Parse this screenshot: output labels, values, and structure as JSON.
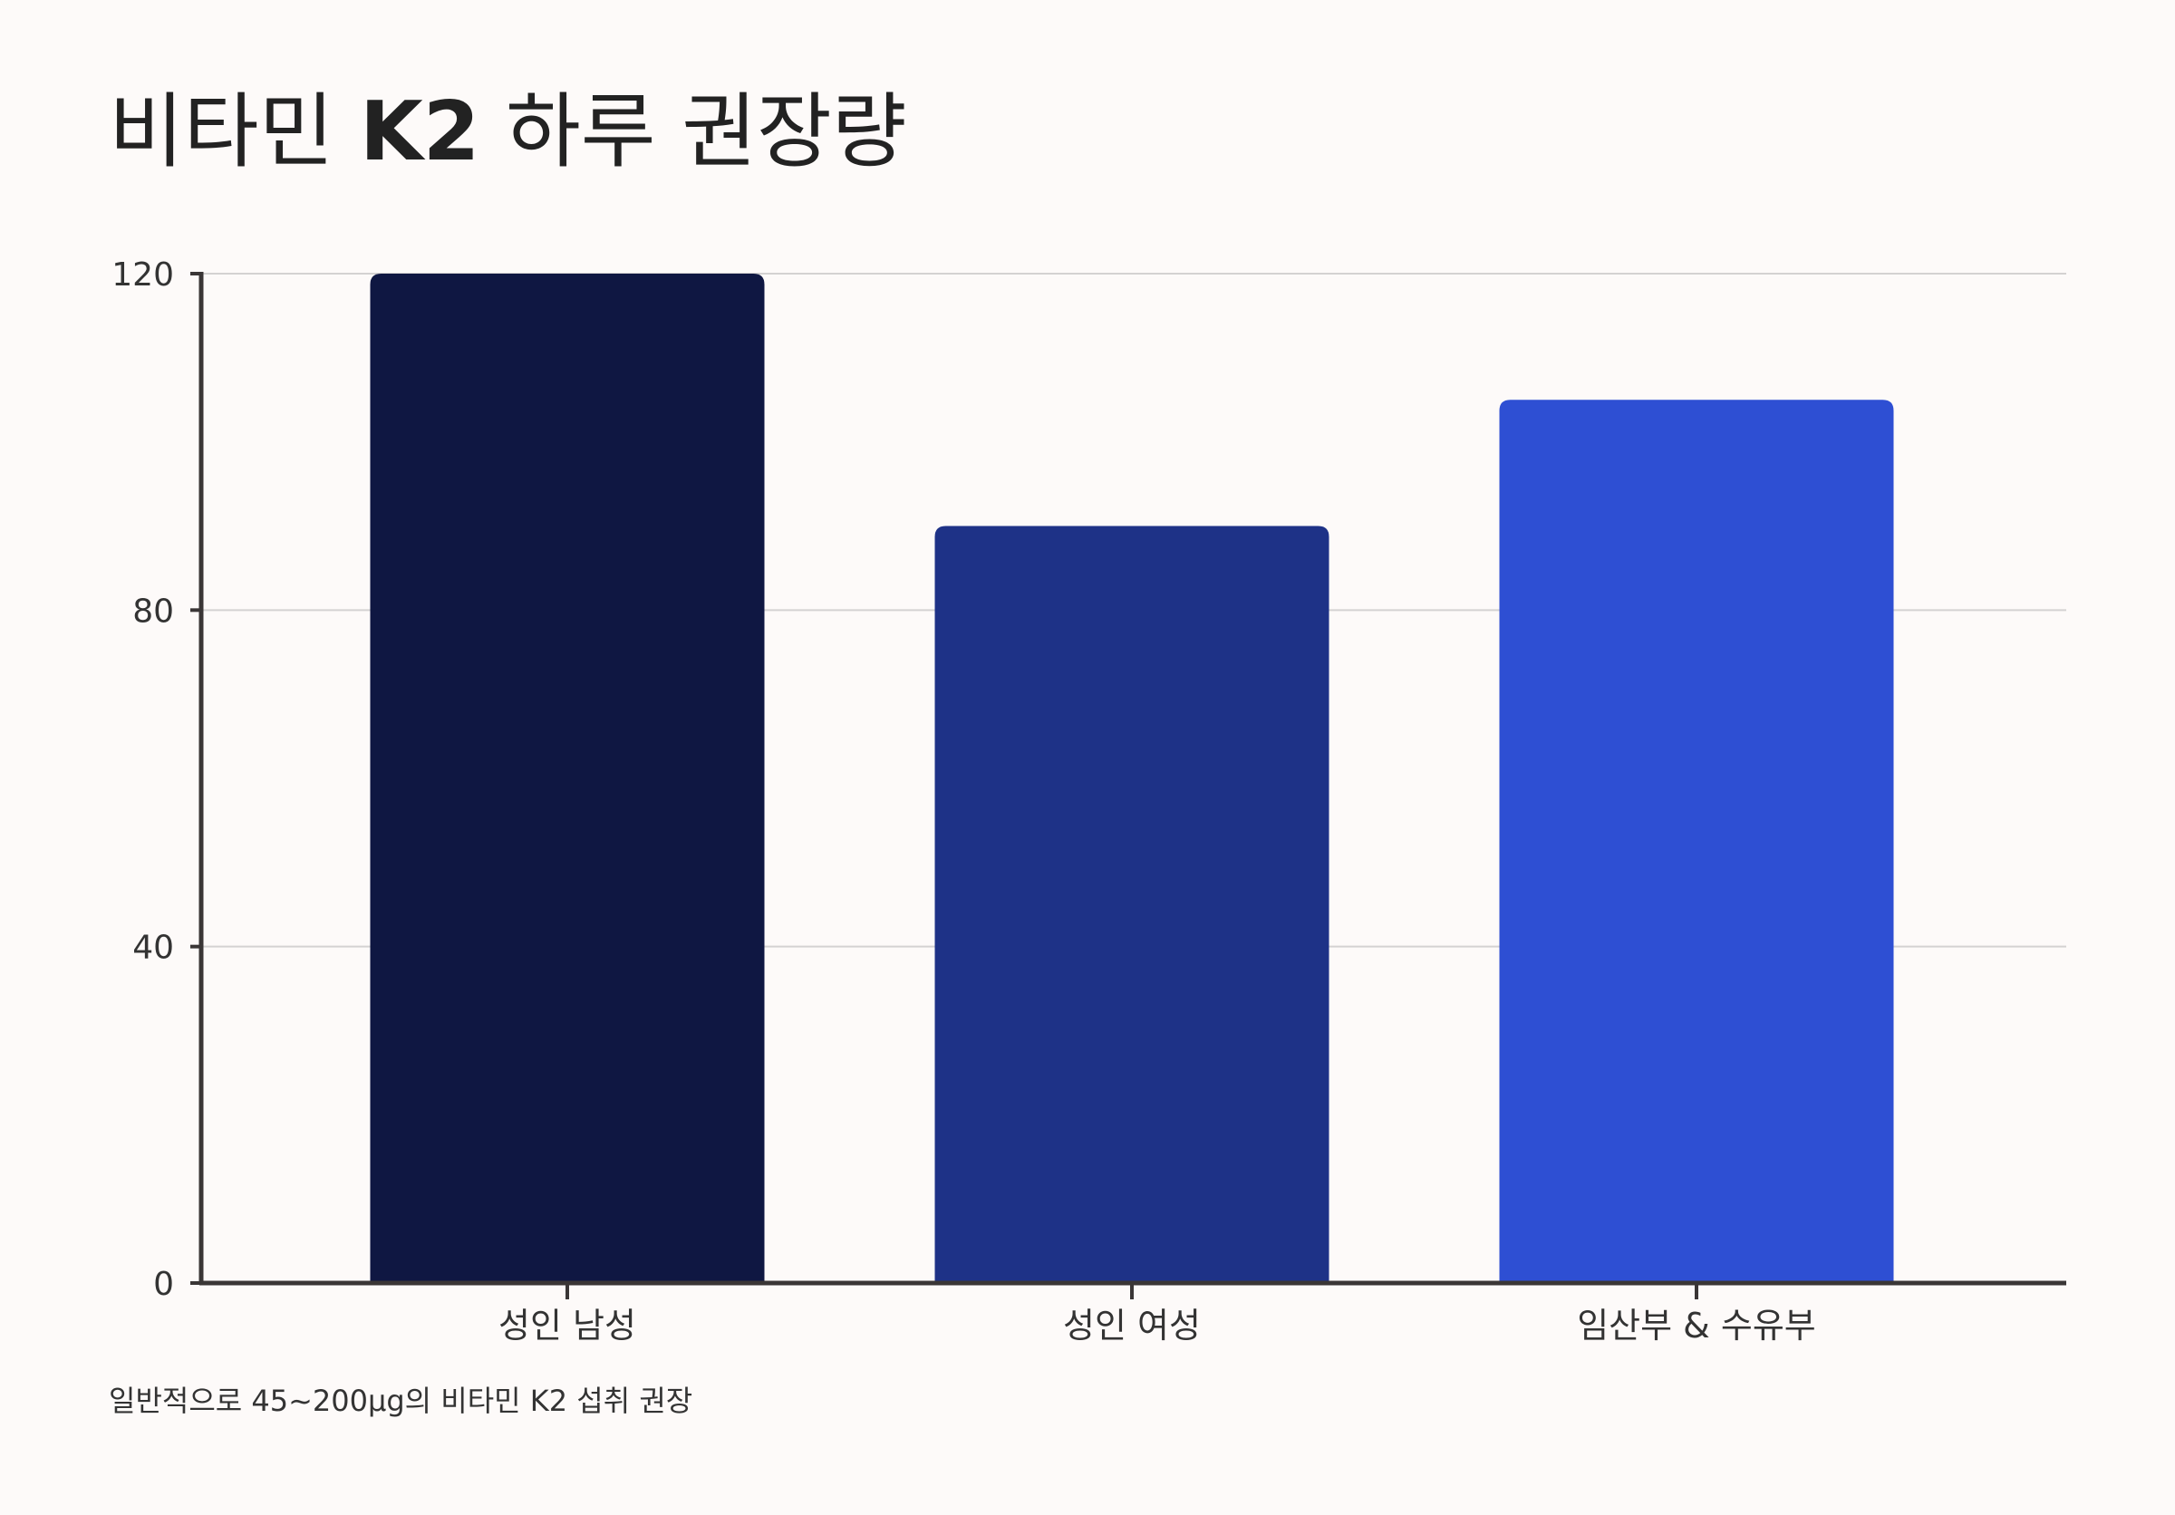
{
  "title": {
    "part1": "비타민",
    "part2": "K2",
    "part3": "하루 권장량"
  },
  "footnote": "일반적으로 45~200µg의 비타민 K2 섭취 권장",
  "colors": {
    "background": "#fdfaf9",
    "axis": "#3a3636",
    "grid": "#d4d2d2",
    "text": "#222222"
  },
  "chart_data": {
    "type": "bar",
    "categories": [
      "성인 남성",
      "성인 여성",
      "임산부 & 수유부"
    ],
    "values": [
      120,
      90,
      105
    ],
    "bar_colors": [
      "#0f1742",
      "#1e3287",
      "#2e4fd3"
    ],
    "ylim": [
      0,
      120
    ],
    "yticks": [
      0,
      40,
      80,
      120
    ],
    "grid": true,
    "legend": "none"
  }
}
